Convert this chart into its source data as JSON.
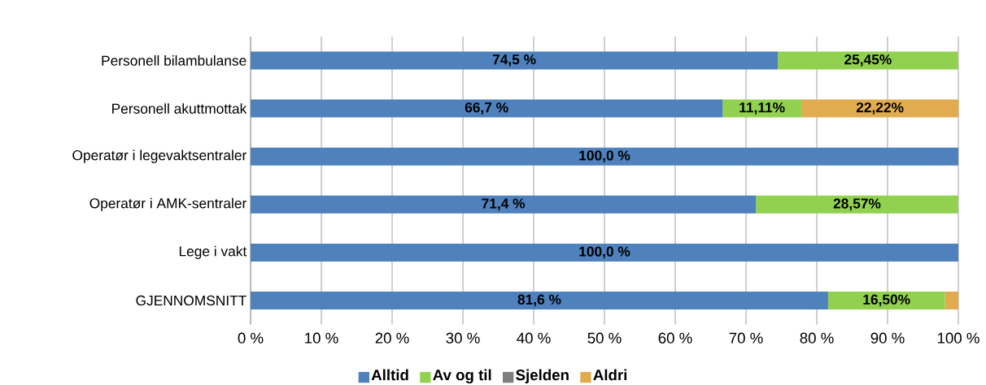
{
  "chart_data": {
    "type": "bar",
    "orientation": "horizontal",
    "stacked": true,
    "categories": [
      "Personell bilambulanse",
      "Personell akuttmottak",
      "Operatør i legevaktsentraler",
      "Operatør i AMK-sentraler",
      "Lege i vakt",
      "GJENNOMSNITT"
    ],
    "series": [
      {
        "name": "Alltid",
        "color": "#4f81bd",
        "values": [
          74.5,
          66.7,
          100.0,
          71.4,
          100.0,
          81.6
        ],
        "value_labels": [
          "74,5 %",
          "66,7 %",
          "100,0 %",
          "71,4 %",
          "100,0 %",
          "81,6 %"
        ]
      },
      {
        "name": "Av og til",
        "color": "#92d050",
        "values": [
          25.45,
          11.11,
          null,
          28.57,
          null,
          16.5
        ],
        "value_labels": [
          "25,45%",
          "11,11%",
          null,
          "28,57%",
          null,
          "16,50%"
        ]
      },
      {
        "name": "Sjelden",
        "color": "#7f7f7f",
        "values": [
          null,
          null,
          null,
          null,
          null,
          null
        ]
      },
      {
        "name": "Aldri",
        "color": "#e0ac4f",
        "values": [
          null,
          22.22,
          null,
          null,
          null,
          1.9
        ],
        "value_labels": [
          null,
          "22,22%",
          null,
          null,
          null,
          null
        ]
      }
    ],
    "xlim": [
      0,
      100
    ],
    "xticks": [
      {
        "value": 0,
        "label": "0 %"
      },
      {
        "value": 10,
        "label": "10 %"
      },
      {
        "value": 20,
        "label": "20 %"
      },
      {
        "value": 30,
        "label": "30 %"
      },
      {
        "value": 40,
        "label": "40 %"
      },
      {
        "value": 50,
        "label": "50 %"
      },
      {
        "value": 60,
        "label": "60 %"
      },
      {
        "value": 70,
        "label": "70 %"
      },
      {
        "value": 80,
        "label": "80 %"
      },
      {
        "value": 90,
        "label": "90 %"
      },
      {
        "value": 100,
        "label": "100 %"
      }
    ],
    "grid": "x",
    "legend": "bottom"
  }
}
